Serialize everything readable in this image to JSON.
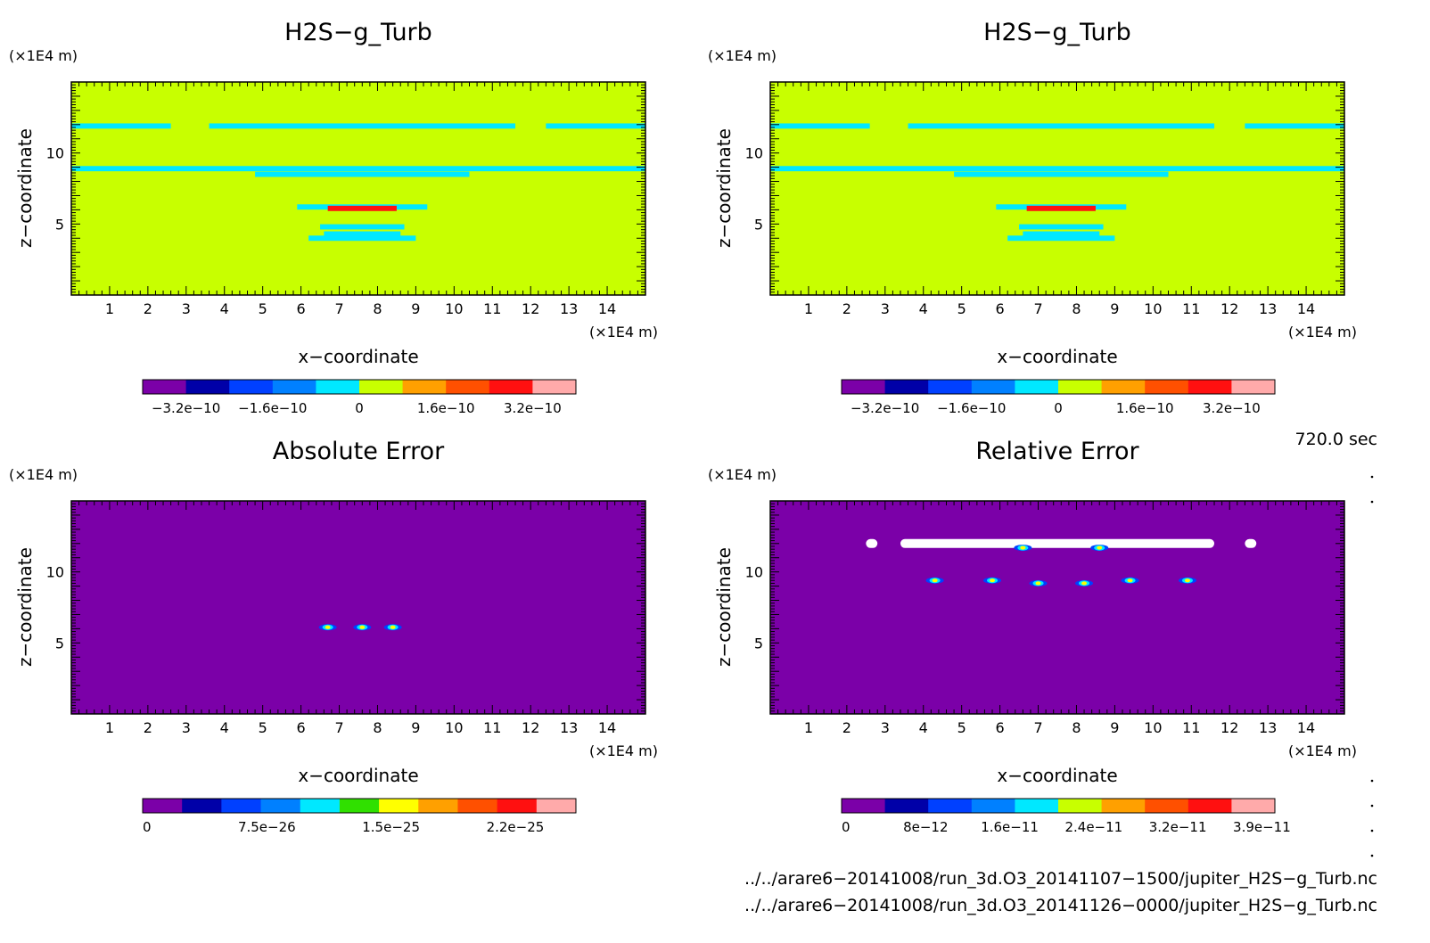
{
  "chart_data": [
    {
      "type": "heatmap",
      "title": "H2S−g_Turb",
      "xlabel": "x−coordinate",
      "ylabel": "z−coordinate",
      "x_unit": "(×1E4 m)",
      "y_unit": "(×1E4 m)",
      "xlim": [
        0,
        15
      ],
      "ylim": [
        0,
        15
      ],
      "x_ticks": [
        "1",
        "2",
        "3",
        "4",
        "5",
        "6",
        "7",
        "8",
        "9",
        "10",
        "11",
        "12",
        "13",
        "14"
      ],
      "y_ticks": [
        "5",
        "10"
      ],
      "background_value": 0,
      "colorbar": {
        "colors": [
          "#7b00a8",
          "#0000a8",
          "#0040ff",
          "#0080ff",
          "#00e8ff",
          "#c8ff00",
          "#ffa000",
          "#ff5000",
          "#ff1010",
          "#ffaaaa"
        ],
        "labels": [
          "−3.2e−10",
          "−1.6e−10",
          "0",
          "1.6e−10",
          "3.2e−10"
        ],
        "range": [
          -4e-10,
          4e-10
        ]
      },
      "bands": [
        {
          "z": 11.9,
          "x_segments": [
            [
              0,
              2.6
            ],
            [
              3.6,
              11.6
            ],
            [
              12.4,
              15
            ]
          ],
          "color": "#00e8ff"
        },
        {
          "z": 8.9,
          "x_segments": [
            [
              0,
              15
            ]
          ],
          "color": "#00e8ff"
        },
        {
          "z": 8.5,
          "x_segments": [
            [
              4.8,
              10.4
            ]
          ],
          "color": "#00e8ff"
        },
        {
          "z": 6.2,
          "x_segments": [
            [
              5.9,
              9.3
            ]
          ],
          "color": "#00e8ff"
        },
        {
          "z": 6.1,
          "x_segments": [
            [
              6.7,
              8.5
            ]
          ],
          "color": "#ff1010"
        },
        {
          "z": 4.8,
          "x_segments": [
            [
              6.5,
              8.7
            ]
          ],
          "color": "#00e8ff"
        },
        {
          "z": 4.3,
          "x_segments": [
            [
              6.6,
              8.6
            ]
          ],
          "color": "#00e8ff"
        },
        {
          "z": 4.0,
          "x_segments": [
            [
              6.2,
              9.0
            ]
          ],
          "color": "#00e8ff"
        }
      ]
    },
    {
      "type": "heatmap",
      "title": "H2S−g_Turb",
      "xlabel": "x−coordinate",
      "ylabel": "z−coordinate",
      "x_unit": "(×1E4 m)",
      "y_unit": "(×1E4 m)",
      "xlim": [
        0,
        15
      ],
      "ylim": [
        0,
        15
      ],
      "x_ticks": [
        "1",
        "2",
        "3",
        "4",
        "5",
        "6",
        "7",
        "8",
        "9",
        "10",
        "11",
        "12",
        "13",
        "14"
      ],
      "y_ticks": [
        "5",
        "10"
      ],
      "background_value": 0,
      "colorbar": {
        "colors": [
          "#7b00a8",
          "#0000a8",
          "#0040ff",
          "#0080ff",
          "#00e8ff",
          "#c8ff00",
          "#ffa000",
          "#ff5000",
          "#ff1010",
          "#ffaaaa"
        ],
        "labels": [
          "−3.2e−10",
          "−1.6e−10",
          "0",
          "1.6e−10",
          "3.2e−10"
        ],
        "range": [
          -4e-10,
          4e-10
        ]
      },
      "bands": [
        {
          "z": 11.9,
          "x_segments": [
            [
              0,
              2.6
            ],
            [
              3.6,
              11.6
            ],
            [
              12.4,
              15
            ]
          ],
          "color": "#00e8ff"
        },
        {
          "z": 8.9,
          "x_segments": [
            [
              0,
              15
            ]
          ],
          "color": "#00e8ff"
        },
        {
          "z": 8.5,
          "x_segments": [
            [
              4.8,
              10.4
            ]
          ],
          "color": "#00e8ff"
        },
        {
          "z": 6.2,
          "x_segments": [
            [
              5.9,
              9.3
            ]
          ],
          "color": "#00e8ff"
        },
        {
          "z": 6.1,
          "x_segments": [
            [
              6.7,
              8.5
            ]
          ],
          "color": "#ff1010"
        },
        {
          "z": 4.8,
          "x_segments": [
            [
              6.5,
              8.7
            ]
          ],
          "color": "#00e8ff"
        },
        {
          "z": 4.3,
          "x_segments": [
            [
              6.6,
              8.6
            ]
          ],
          "color": "#00e8ff"
        },
        {
          "z": 4.0,
          "x_segments": [
            [
              6.2,
              9.0
            ]
          ],
          "color": "#00e8ff"
        }
      ]
    },
    {
      "type": "heatmap",
      "title": "Absolute Error",
      "xlabel": "x−coordinate",
      "ylabel": "z−coordinate",
      "x_unit": "(×1E4 m)",
      "y_unit": "(×1E4 m)",
      "xlim": [
        0,
        15
      ],
      "ylim": [
        0,
        15
      ],
      "x_ticks": [
        "1",
        "2",
        "3",
        "4",
        "5",
        "6",
        "7",
        "8",
        "9",
        "10",
        "11",
        "12",
        "13",
        "14"
      ],
      "y_ticks": [
        "5",
        "10"
      ],
      "background_value": 0,
      "colorbar": {
        "colors": [
          "#7b00a8",
          "#0000a8",
          "#0040ff",
          "#0080ff",
          "#00e8ff",
          "#30e000",
          "#ffff00",
          "#ffa000",
          "#ff5000",
          "#ff1010",
          "#ffaaaa"
        ],
        "labels": [
          "0",
          "7.5e−26",
          "1.5e−25",
          "2.2e−25"
        ],
        "range": [
          0,
          3e-25
        ]
      },
      "spots": [
        {
          "x": 6.7,
          "z": 6.1
        },
        {
          "x": 7.6,
          "z": 6.1
        },
        {
          "x": 8.4,
          "z": 6.1
        }
      ]
    },
    {
      "type": "heatmap",
      "title": "Relative Error",
      "xlabel": "x−coordinate",
      "ylabel": "z−coordinate",
      "x_unit": "(×1E4 m)",
      "y_unit": "(×1E4 m)",
      "xlim": [
        0,
        15
      ],
      "ylim": [
        0,
        15
      ],
      "x_ticks": [
        "1",
        "2",
        "3",
        "4",
        "5",
        "6",
        "7",
        "8",
        "9",
        "10",
        "11",
        "12",
        "13",
        "14"
      ],
      "y_ticks": [
        "5",
        "10"
      ],
      "background_value": 0,
      "colorbar": {
        "colors": [
          "#7b00a8",
          "#0000a8",
          "#0040ff",
          "#0080ff",
          "#00e8ff",
          "#c8ff00",
          "#ffa000",
          "#ff5000",
          "#ff1010",
          "#ffaaaa"
        ],
        "labels": [
          "0",
          "8e−12",
          "1.6e−11",
          "2.4e−11",
          "3.2e−11",
          "3.9e−11"
        ],
        "range": [
          0,
          4e-11
        ]
      },
      "undefined_regions": [
        {
          "z": 12.0,
          "x_segments": [
            [
              2.5,
              2.8
            ],
            [
              3.4,
              11.6
            ],
            [
              12.4,
              12.7
            ]
          ]
        }
      ],
      "spots": [
        {
          "x": 4.3,
          "z": 9.4
        },
        {
          "x": 5.8,
          "z": 9.4
        },
        {
          "x": 7.0,
          "z": 9.2
        },
        {
          "x": 8.2,
          "z": 9.2
        },
        {
          "x": 9.4,
          "z": 9.4
        },
        {
          "x": 10.9,
          "z": 9.4
        },
        {
          "x": 6.6,
          "z": 11.7
        },
        {
          "x": 8.6,
          "z": 11.7
        }
      ]
    }
  ],
  "time_label": "720.0 sec",
  "footer": {
    "file1": "../../arare6−20141008/run_3d.O3_20141107−1500/jupiter_H2S−g_Turb.nc",
    "file2": "../../arare6−20141008/run_3d.O3_20141126−0000/jupiter_H2S−g_Turb.nc"
  }
}
